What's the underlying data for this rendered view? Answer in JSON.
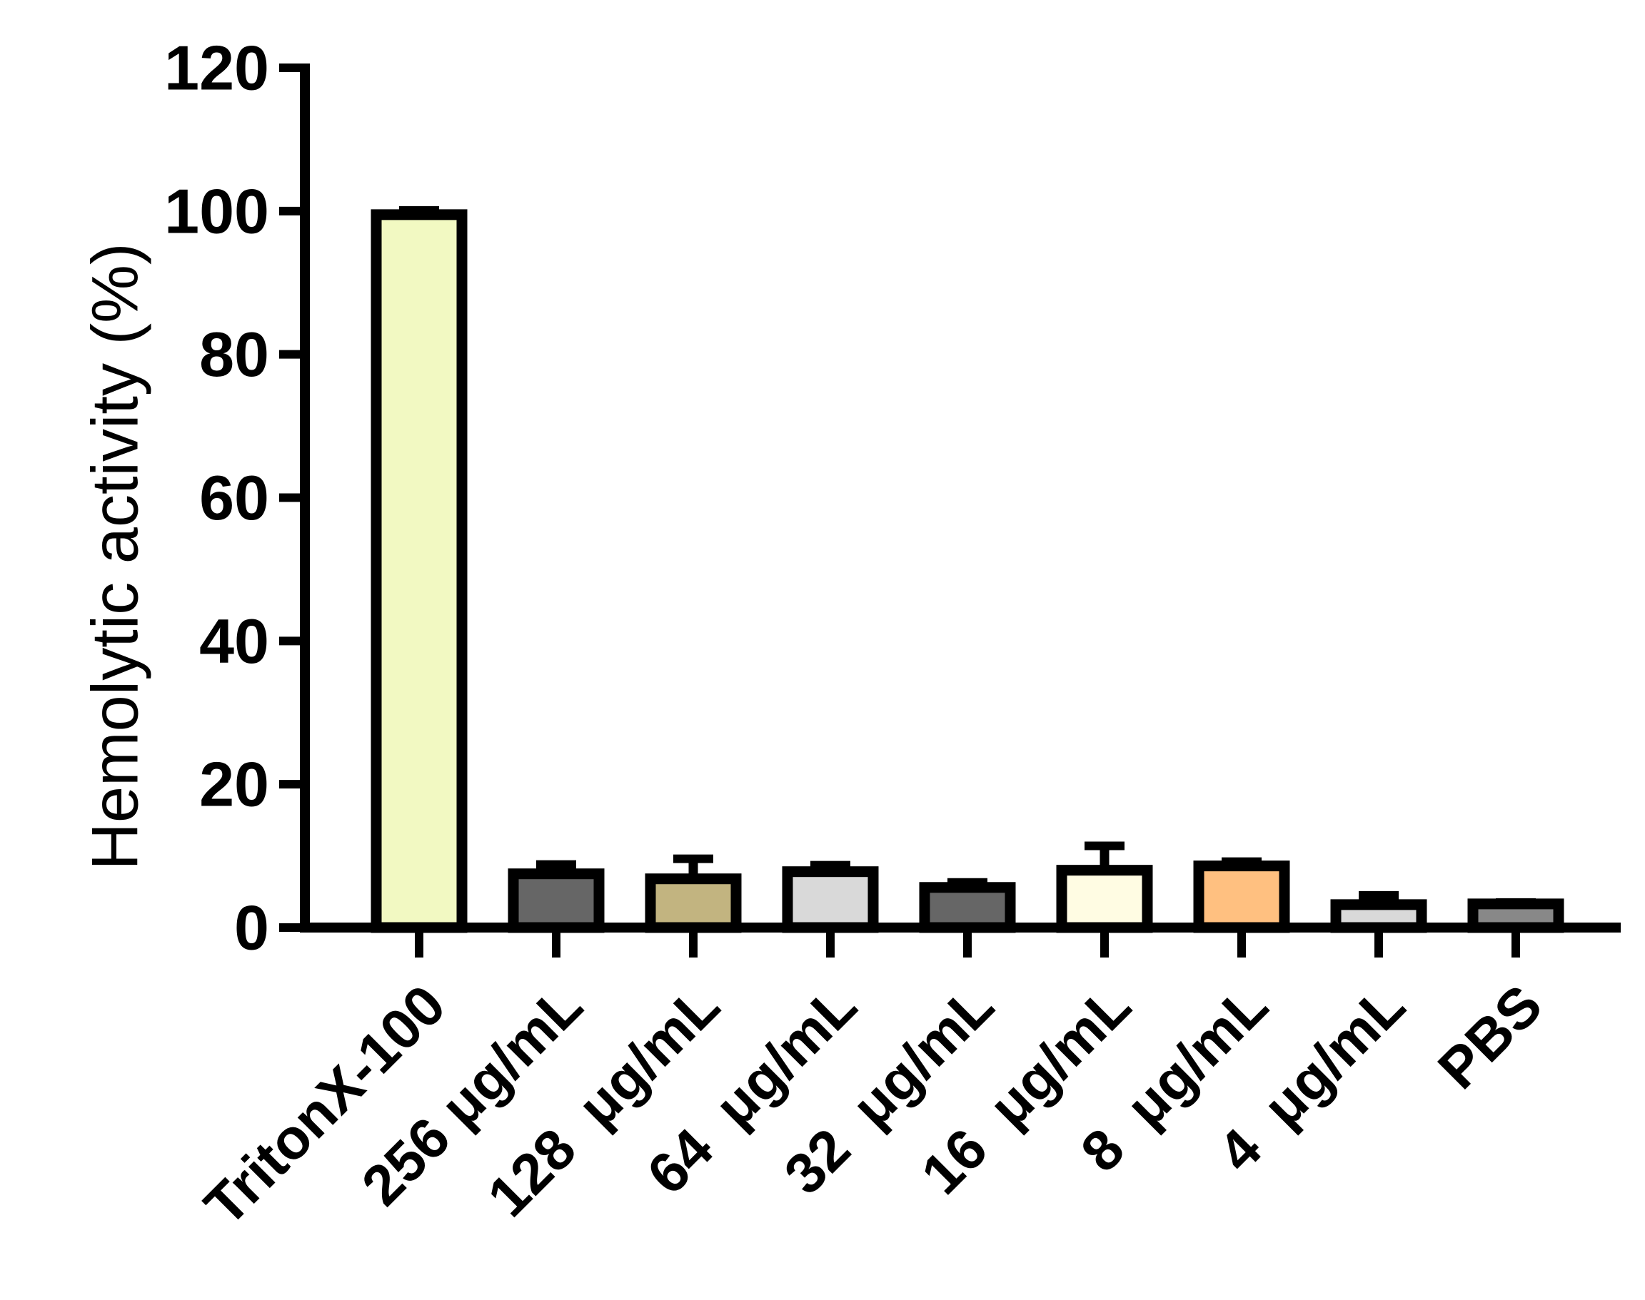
{
  "chart_data": {
    "type": "bar",
    "title": "",
    "xlabel": "",
    "ylabel": "Hemolytic activity (%)",
    "ylim": [
      0,
      120
    ],
    "yticks": [
      0,
      20,
      40,
      60,
      80,
      100,
      120
    ],
    "grid": false,
    "categories": [
      "TritonX-100",
      "256 μg/mL",
      "128  μg/mL",
      "64  μg/mL",
      "32  μg/mL",
      "16  μg/mL",
      "8  μg/mL",
      "4  μg/mL",
      "PBS"
    ],
    "values": [
      99.5,
      7.5,
      6.8,
      7.8,
      5.6,
      8.0,
      8.6,
      3.2,
      3.3
    ],
    "errors": [
      0.6,
      1.3,
      2.8,
      0.9,
      0.7,
      3.4,
      0.6,
      1.3,
      0.2
    ],
    "colors": [
      "#F2F9C2",
      "#666666",
      "#C2B480",
      "#D9D9D9",
      "#666666",
      "#FFFCE3",
      "#FFC080",
      "#D9D9D9",
      "#888888"
    ]
  }
}
